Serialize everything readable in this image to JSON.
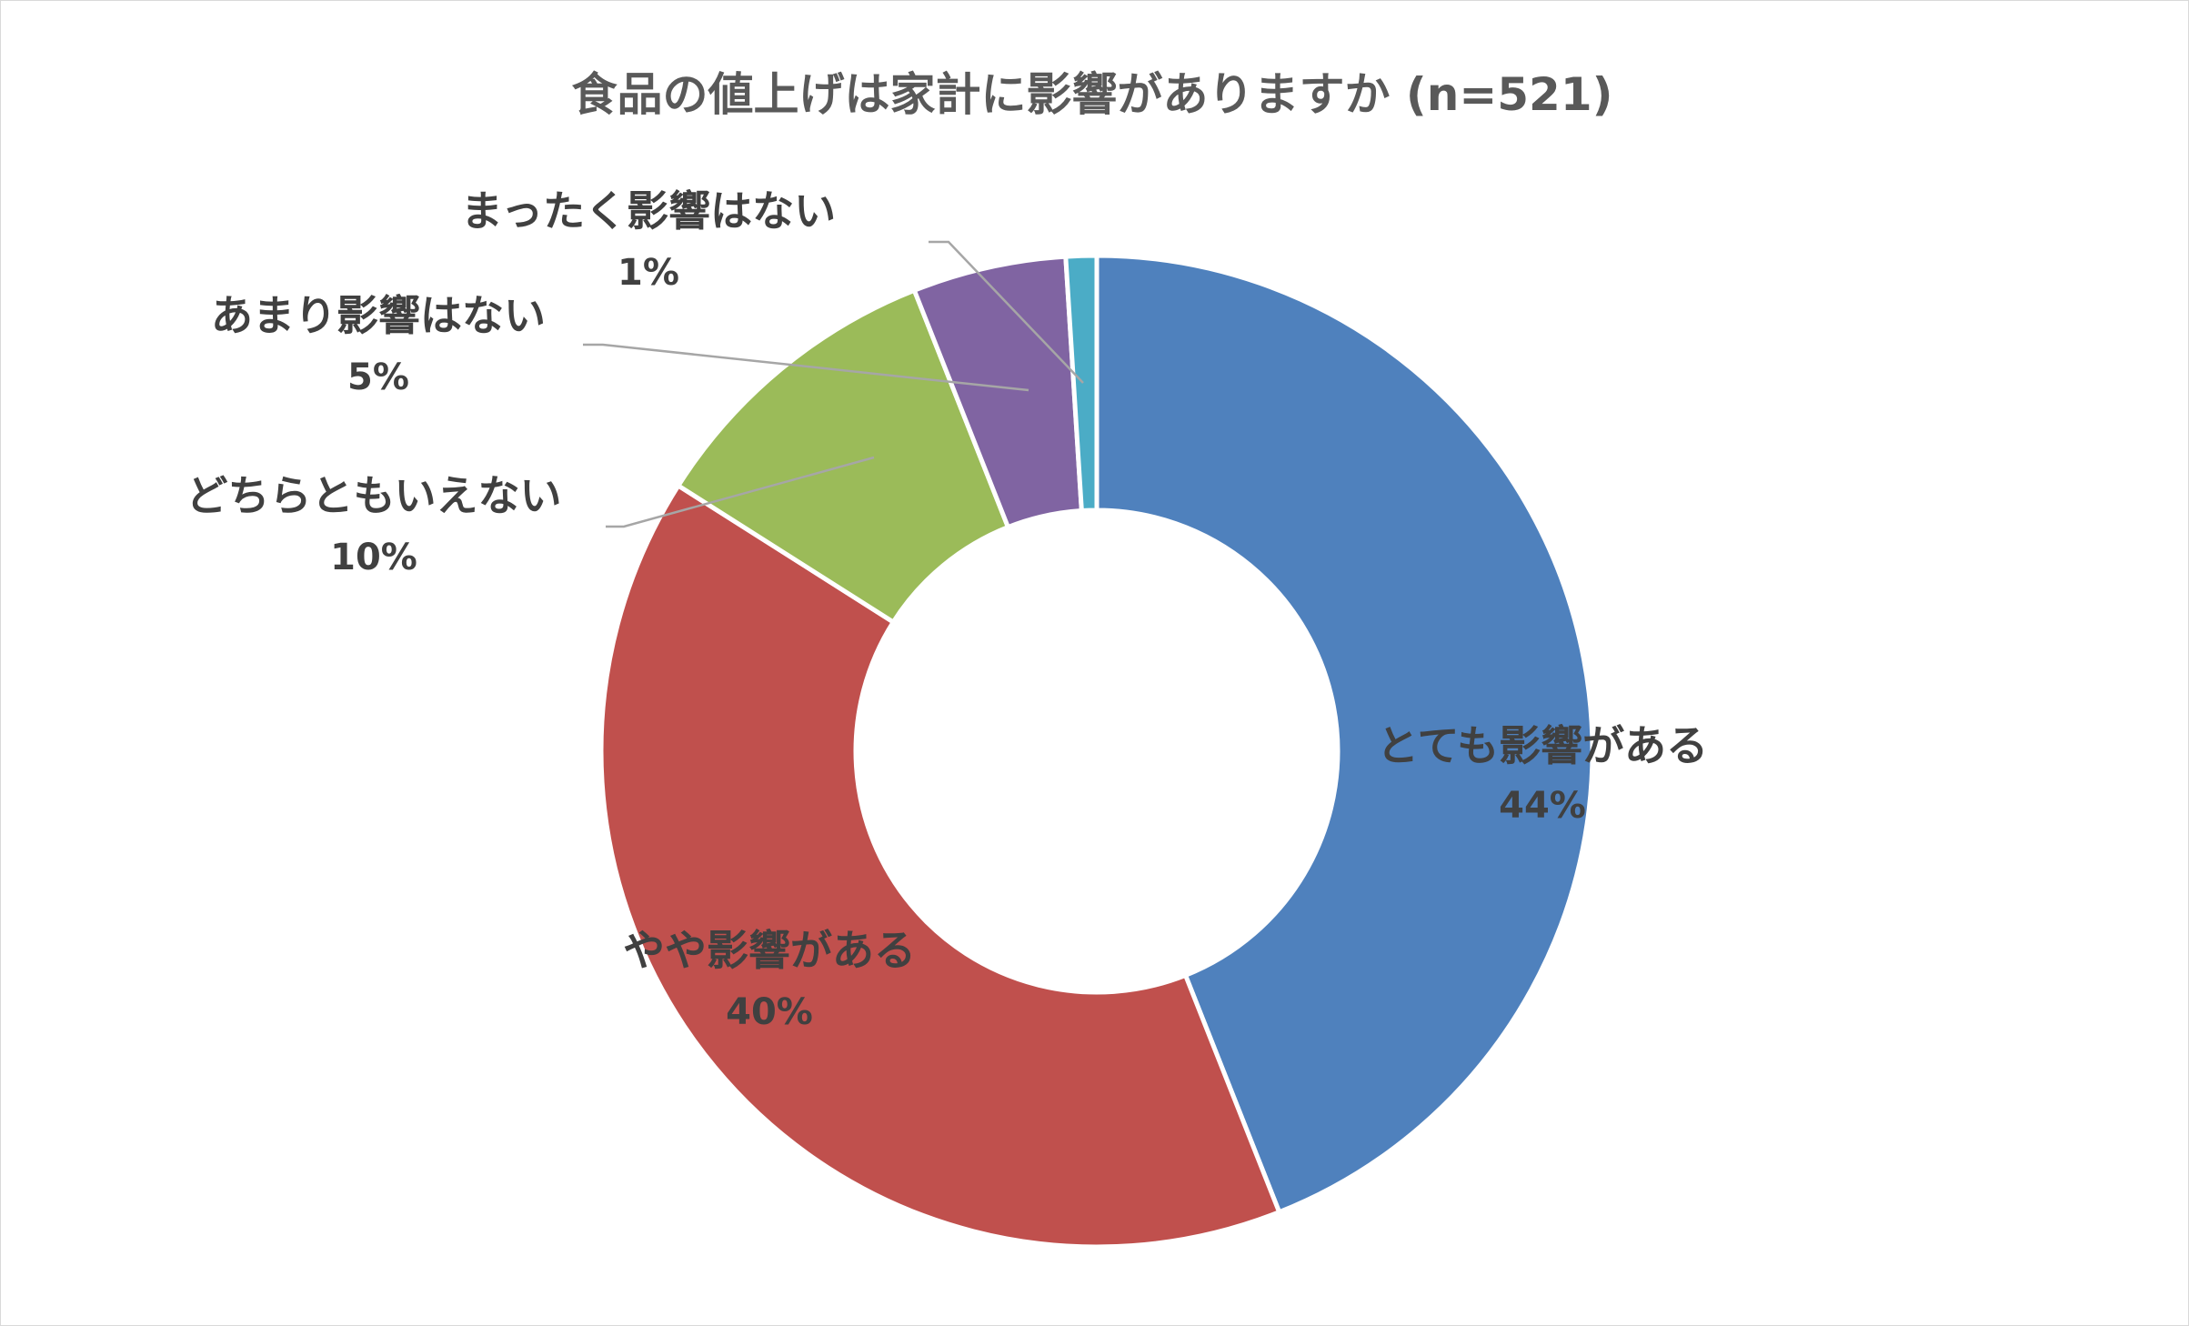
{
  "chart_data": {
    "type": "pie",
    "subtype": "doughnut",
    "title": "食品の値上げは家計に影響がありますか (n=521)",
    "categories": [
      "とても影響がある",
      "やや影響がある",
      "どちらともいえない",
      "あまり影響はない",
      "まったく影響はない"
    ],
    "values": [
      44,
      40,
      10,
      5,
      1
    ],
    "value_labels": [
      "44%",
      "40%",
      "10%",
      "5%",
      "1%"
    ],
    "colors": [
      "#4f81bd",
      "#c0504d",
      "#9bbb59",
      "#8064a2",
      "#4bacc6"
    ],
    "legend": "none"
  }
}
